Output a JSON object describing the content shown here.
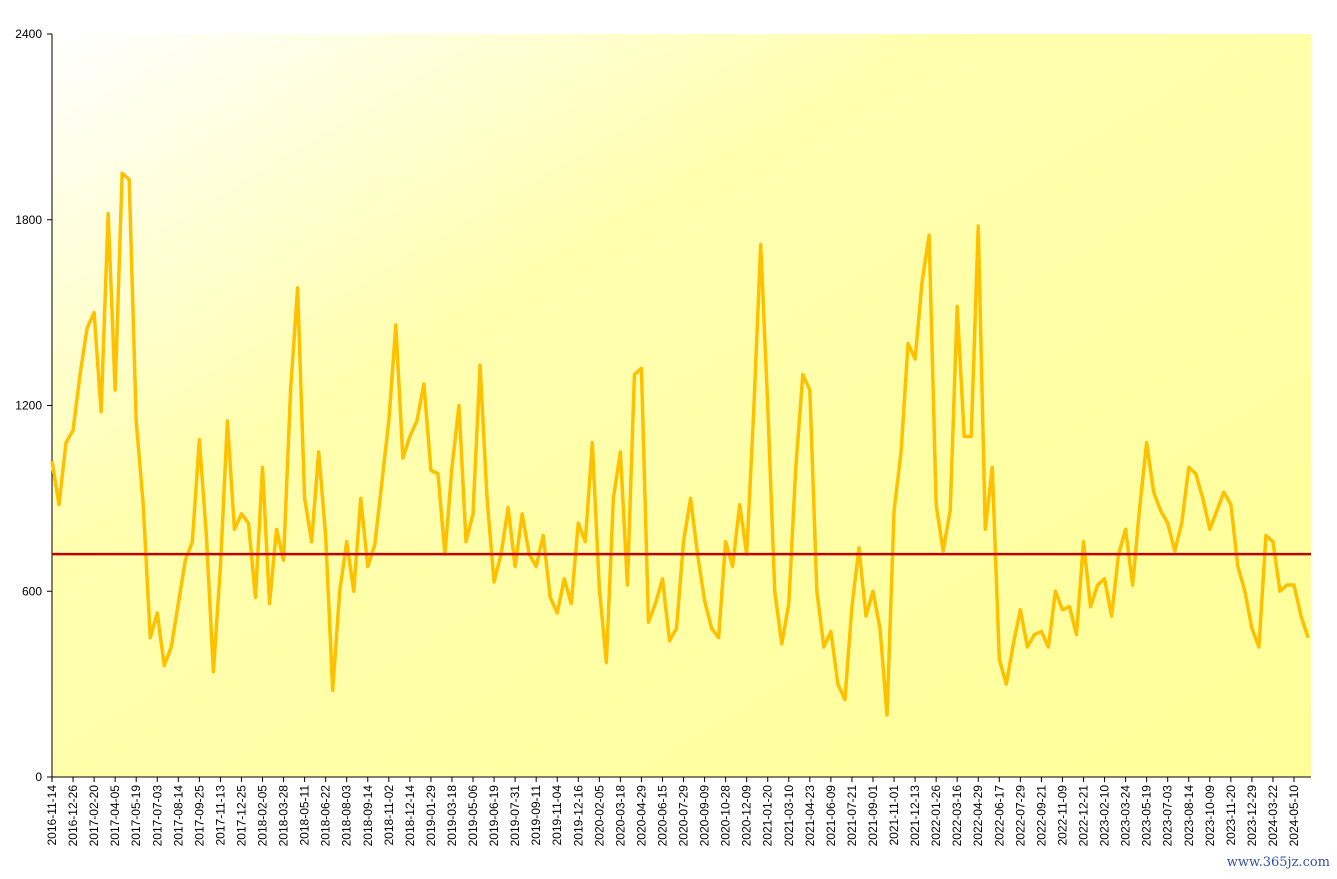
{
  "chart_data": {
    "type": "line",
    "categories": [
      "2016-11-14",
      null,
      null,
      "2016-12-26",
      null,
      null,
      "2017-02-20",
      null,
      null,
      "2017-04-05",
      null,
      null,
      "2017-05-19",
      null,
      null,
      "2017-07-03",
      null,
      null,
      "2017-08-14",
      null,
      null,
      "2017-09-25",
      null,
      null,
      "2017-11-13",
      null,
      null,
      "2017-12-25",
      null,
      null,
      "2018-02-05",
      null,
      null,
      "2018-03-28",
      null,
      null,
      "2018-05-11",
      null,
      null,
      "2018-06-22",
      null,
      null,
      "2018-08-03",
      null,
      null,
      "2018-09-14",
      null,
      null,
      "2018-11-02",
      null,
      null,
      "2018-12-14",
      null,
      null,
      "2019-01-29",
      null,
      null,
      "2019-03-18",
      null,
      null,
      "2019-05-06",
      null,
      null,
      "2019-06-19",
      null,
      null,
      "2019-07-31",
      null,
      null,
      "2019-09-11",
      null,
      null,
      "2019-11-04",
      null,
      null,
      "2019-12-16",
      null,
      null,
      "2020-02-05",
      null,
      null,
      "2020-03-18",
      null,
      null,
      "2020-04-29",
      null,
      null,
      "2020-06-15",
      null,
      null,
      "2020-07-29",
      null,
      null,
      "2020-09-09",
      null,
      null,
      "2020-10-28",
      null,
      null,
      "2020-12-09",
      null,
      null,
      "2021-01-20",
      null,
      null,
      "2021-03-10",
      null,
      null,
      "2021-04-23",
      null,
      null,
      "2021-06-09",
      null,
      null,
      "2021-07-21",
      null,
      null,
      "2021-09-01",
      null,
      null,
      "2021-11-01",
      null,
      null,
      "2021-12-13",
      null,
      null,
      "2022-01-26",
      null,
      null,
      "2022-03-16",
      null,
      null,
      "2022-04-29",
      null,
      null,
      "2022-06-17",
      null,
      null,
      "2022-07-29",
      null,
      null,
      "2022-09-21",
      null,
      null,
      "2022-11-09",
      null,
      null,
      "2022-12-21",
      null,
      null,
      "2023-02-10",
      null,
      null,
      "2023-03-24",
      null,
      null,
      "2023-05-19",
      null,
      null,
      "2023-07-03",
      null,
      null,
      "2023-08-14",
      null,
      null,
      "2023-10-09",
      null,
      null,
      "2023-11-20",
      null,
      null,
      "2023-12-29",
      null,
      null,
      "2024-03-22",
      null,
      null,
      "2024-05-10",
      null,
      null
    ],
    "series": [
      {
        "color": "#ffc000",
        "values": [
          1020,
          880,
          1080,
          1120,
          1300,
          1450,
          1500,
          1180,
          1820,
          1250,
          1950,
          1930,
          1150,
          880,
          450,
          530,
          360,
          420,
          560,
          700,
          760,
          1090,
          780,
          340,
          680,
          1150,
          800,
          850,
          820,
          580,
          1000,
          560,
          800,
          700,
          1250,
          1580,
          900,
          760,
          1050,
          780,
          280,
          600,
          760,
          600,
          900,
          680,
          750,
          950,
          1150,
          1460,
          1030,
          1100,
          1150,
          1270,
          990,
          980,
          720,
          1000,
          1200,
          760,
          850,
          1330,
          900,
          630,
          720,
          870,
          680,
          850,
          720,
          680,
          780,
          580,
          530,
          640,
          560,
          820,
          760,
          1080,
          610,
          370,
          900,
          1050,
          620,
          1300,
          1320,
          500,
          560,
          640,
          440,
          480,
          760,
          900,
          720,
          570,
          480,
          450,
          760,
          680,
          880,
          720,
          1180,
          1720,
          1200,
          600,
          430,
          560,
          1000,
          1300,
          1250,
          600,
          420,
          470,
          300,
          250,
          550,
          740,
          520,
          600,
          480,
          200,
          860,
          1050,
          1400,
          1350,
          1600,
          1750,
          880,
          730,
          860,
          1520,
          1100,
          1100,
          1780,
          800,
          1000,
          380,
          300,
          430,
          540,
          420,
          460,
          470,
          420,
          600,
          540,
          550,
          460,
          760,
          550,
          620,
          640,
          520,
          720,
          800,
          620,
          870,
          1080,
          920,
          860,
          820,
          730,
          820,
          1000,
          980,
          900,
          800,
          860,
          920,
          880,
          680,
          600,
          480,
          420,
          780,
          760,
          600,
          620,
          620,
          520,
          450
        ]
      }
    ],
    "hlines": [
      {
        "value": 720,
        "color": "#c00000"
      }
    ],
    "ylim": [
      0,
      2400
    ],
    "yticks": [
      0,
      600,
      1200,
      1800,
      2400
    ],
    "watermark": "www.365jz.com"
  }
}
